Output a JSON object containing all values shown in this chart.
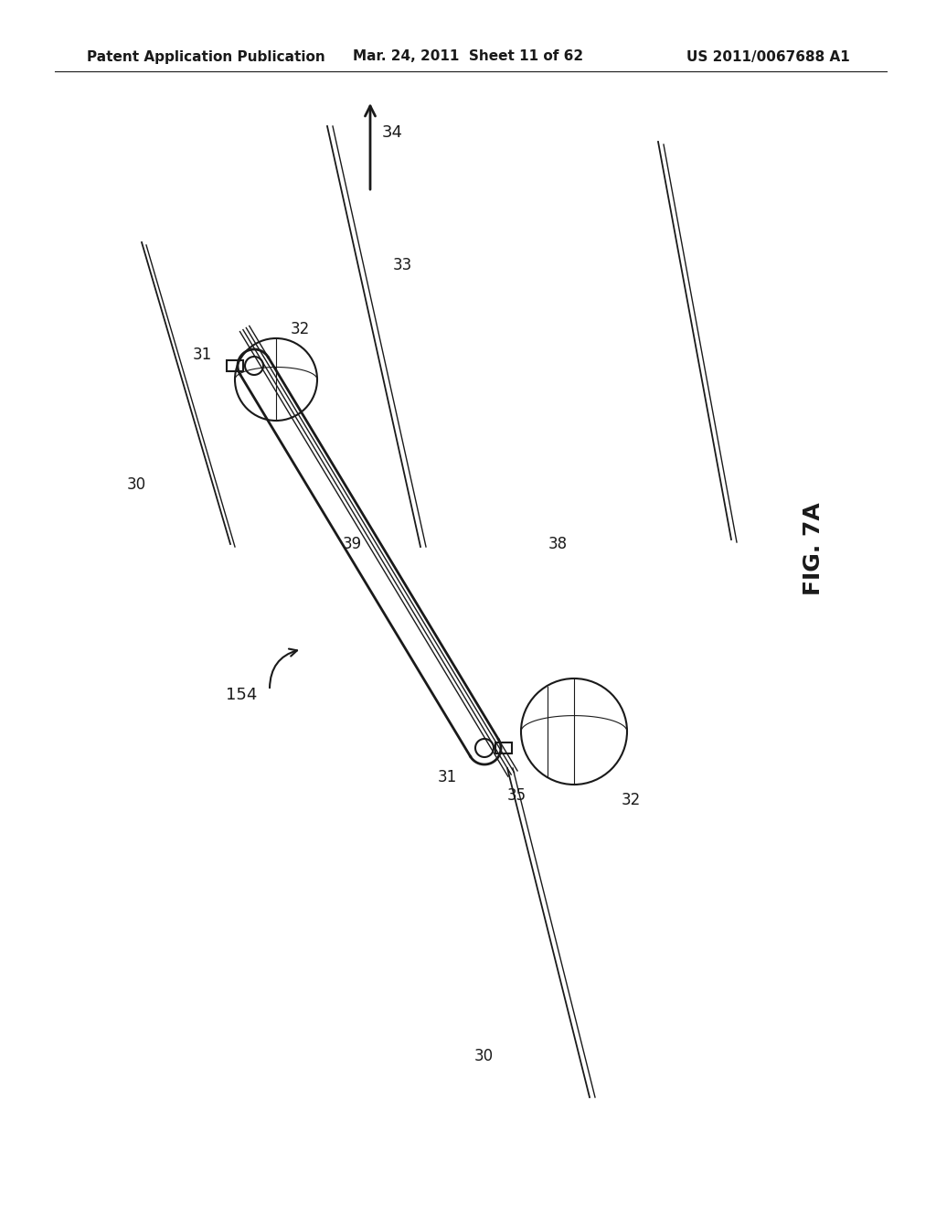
{
  "bg_color": "#ffffff",
  "line_color": "#1a1a1a",
  "text_color": "#1a1a1a",
  "header_left": "Patent Application Publication",
  "header_mid": "Mar. 24, 2011  Sheet 11 of 62",
  "header_right": "US 2011/0067688 A1",
  "fig_label": "FIG. 7A",
  "labels": {
    "30_top": "30",
    "30_bot": "30",
    "31_top": "31",
    "31_bot": "31",
    "32_top": "32",
    "32_bot": "32",
    "33": "33",
    "34": "34",
    "35": "35",
    "38": "38",
    "39": "39",
    "154": "154"
  }
}
